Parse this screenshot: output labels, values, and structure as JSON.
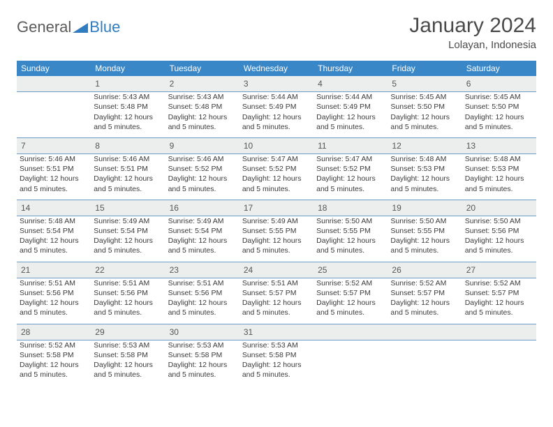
{
  "logo": {
    "general": "General",
    "blue": "Blue",
    "icon_color": "#2f7cc0"
  },
  "title": {
    "month": "January 2024",
    "location": "Lolayan, Indonesia"
  },
  "colors": {
    "header_bg": "#3a87c7",
    "header_text": "#ffffff",
    "daynum_bg": "#eceded",
    "row_divider": "#6b9bc7",
    "body_text": "#3a3a3a"
  },
  "daysOfWeek": [
    "Sunday",
    "Monday",
    "Tuesday",
    "Wednesday",
    "Thursday",
    "Friday",
    "Saturday"
  ],
  "startWeekday": 1,
  "daysInMonth": 31,
  "days": {
    "1": {
      "sunrise": "5:43 AM",
      "sunset": "5:48 PM",
      "daylight": "12 hours and 5 minutes."
    },
    "2": {
      "sunrise": "5:43 AM",
      "sunset": "5:48 PM",
      "daylight": "12 hours and 5 minutes."
    },
    "3": {
      "sunrise": "5:44 AM",
      "sunset": "5:49 PM",
      "daylight": "12 hours and 5 minutes."
    },
    "4": {
      "sunrise": "5:44 AM",
      "sunset": "5:49 PM",
      "daylight": "12 hours and 5 minutes."
    },
    "5": {
      "sunrise": "5:45 AM",
      "sunset": "5:50 PM",
      "daylight": "12 hours and 5 minutes."
    },
    "6": {
      "sunrise": "5:45 AM",
      "sunset": "5:50 PM",
      "daylight": "12 hours and 5 minutes."
    },
    "7": {
      "sunrise": "5:46 AM",
      "sunset": "5:51 PM",
      "daylight": "12 hours and 5 minutes."
    },
    "8": {
      "sunrise": "5:46 AM",
      "sunset": "5:51 PM",
      "daylight": "12 hours and 5 minutes."
    },
    "9": {
      "sunrise": "5:46 AM",
      "sunset": "5:52 PM",
      "daylight": "12 hours and 5 minutes."
    },
    "10": {
      "sunrise": "5:47 AM",
      "sunset": "5:52 PM",
      "daylight": "12 hours and 5 minutes."
    },
    "11": {
      "sunrise": "5:47 AM",
      "sunset": "5:52 PM",
      "daylight": "12 hours and 5 minutes."
    },
    "12": {
      "sunrise": "5:48 AM",
      "sunset": "5:53 PM",
      "daylight": "12 hours and 5 minutes."
    },
    "13": {
      "sunrise": "5:48 AM",
      "sunset": "5:53 PM",
      "daylight": "12 hours and 5 minutes."
    },
    "14": {
      "sunrise": "5:48 AM",
      "sunset": "5:54 PM",
      "daylight": "12 hours and 5 minutes."
    },
    "15": {
      "sunrise": "5:49 AM",
      "sunset": "5:54 PM",
      "daylight": "12 hours and 5 minutes."
    },
    "16": {
      "sunrise": "5:49 AM",
      "sunset": "5:54 PM",
      "daylight": "12 hours and 5 minutes."
    },
    "17": {
      "sunrise": "5:49 AM",
      "sunset": "5:55 PM",
      "daylight": "12 hours and 5 minutes."
    },
    "18": {
      "sunrise": "5:50 AM",
      "sunset": "5:55 PM",
      "daylight": "12 hours and 5 minutes."
    },
    "19": {
      "sunrise": "5:50 AM",
      "sunset": "5:55 PM",
      "daylight": "12 hours and 5 minutes."
    },
    "20": {
      "sunrise": "5:50 AM",
      "sunset": "5:56 PM",
      "daylight": "12 hours and 5 minutes."
    },
    "21": {
      "sunrise": "5:51 AM",
      "sunset": "5:56 PM",
      "daylight": "12 hours and 5 minutes."
    },
    "22": {
      "sunrise": "5:51 AM",
      "sunset": "5:56 PM",
      "daylight": "12 hours and 5 minutes."
    },
    "23": {
      "sunrise": "5:51 AM",
      "sunset": "5:56 PM",
      "daylight": "12 hours and 5 minutes."
    },
    "24": {
      "sunrise": "5:51 AM",
      "sunset": "5:57 PM",
      "daylight": "12 hours and 5 minutes."
    },
    "25": {
      "sunrise": "5:52 AM",
      "sunset": "5:57 PM",
      "daylight": "12 hours and 5 minutes."
    },
    "26": {
      "sunrise": "5:52 AM",
      "sunset": "5:57 PM",
      "daylight": "12 hours and 5 minutes."
    },
    "27": {
      "sunrise": "5:52 AM",
      "sunset": "5:57 PM",
      "daylight": "12 hours and 5 minutes."
    },
    "28": {
      "sunrise": "5:52 AM",
      "sunset": "5:58 PM",
      "daylight": "12 hours and 5 minutes."
    },
    "29": {
      "sunrise": "5:53 AM",
      "sunset": "5:58 PM",
      "daylight": "12 hours and 5 minutes."
    },
    "30": {
      "sunrise": "5:53 AM",
      "sunset": "5:58 PM",
      "daylight": "12 hours and 5 minutes."
    },
    "31": {
      "sunrise": "5:53 AM",
      "sunset": "5:58 PM",
      "daylight": "12 hours and 5 minutes."
    }
  },
  "labels": {
    "sunrise_prefix": "Sunrise: ",
    "sunset_prefix": "Sunset: ",
    "daylight_prefix": "Daylight: "
  }
}
